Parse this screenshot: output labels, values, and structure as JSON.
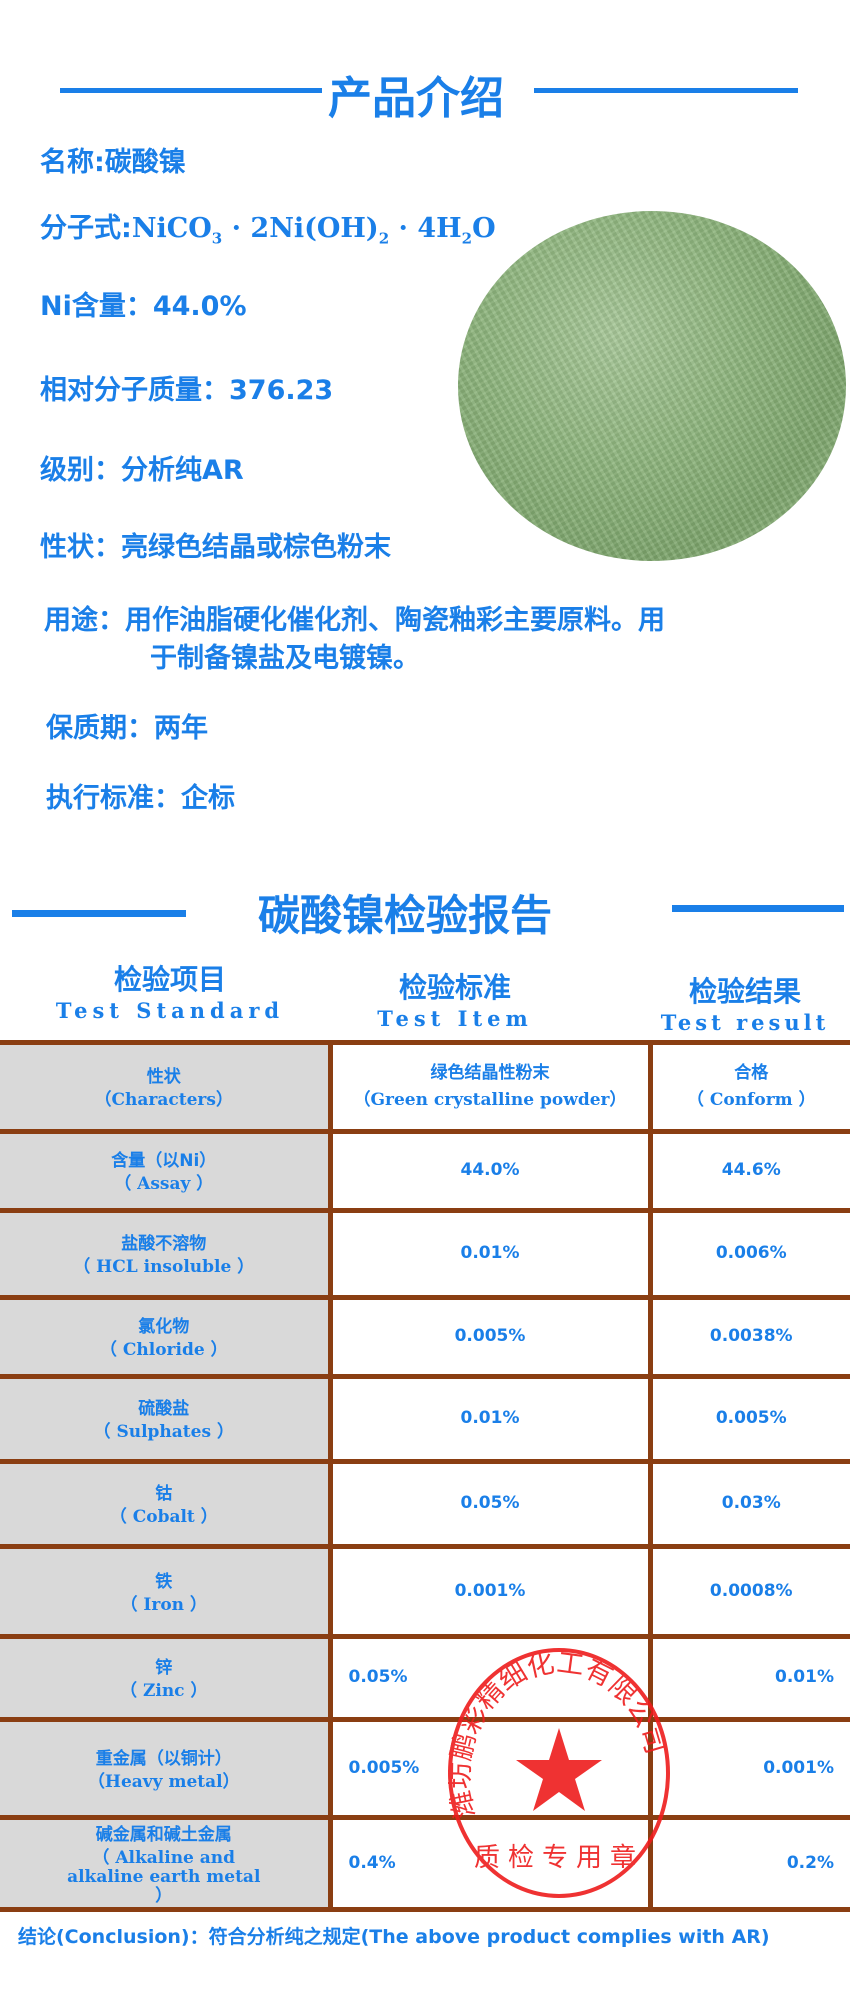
{
  "intro": {
    "title": "产品介绍",
    "name": "名称:碳酸镍",
    "formula_label": "分子式:",
    "formula": {
      "a": "NiCO",
      "s1": "3",
      "b": " · 2Ni(OH)",
      "s2": "2",
      "c": " · 4H",
      "s3": "2",
      "d": "O"
    },
    "ni_content": "Ni含量：44.0%",
    "molecular_weight": "相对分子质量：376.23",
    "grade": "级别：分析纯AR",
    "appearance": "性状：亮绿色结晶或棕色粉末",
    "usage_line1": "用途：用作油脂硬化催化剂、陶瓷釉彩主要原料。用",
    "usage_line2": "于制备镍盐及电镀镍。",
    "shelf_life": "保质期：两年",
    "standard": "执行标准：企标"
  },
  "report": {
    "title": "碳酸镍检验报告",
    "headers": [
      {
        "cn": "检验项目",
        "en": "Test Standard"
      },
      {
        "cn": "检验标准",
        "en": "Test Item"
      },
      {
        "cn": "检验结果",
        "en": "Test result"
      }
    ],
    "rows": [
      {
        "item_cn": "性状",
        "item_en": "（Characters）",
        "standard": "绿色结晶性粉末",
        "standard_en": "（Green crystalline powder）",
        "result": "合格",
        "result_en": "（ Conform ）"
      },
      {
        "item_cn": "含量（以Ni）",
        "item_en": "（ Assay ）",
        "standard": "44.0%",
        "result": "44.6%"
      },
      {
        "item_cn": "盐酸不溶物",
        "item_en": "（ HCL insoluble ）",
        "standard": "0.01%",
        "result": "0.006%"
      },
      {
        "item_cn": "氯化物",
        "item_en": "（ Chloride ）",
        "standard": "0.005%",
        "result": "0.0038%"
      },
      {
        "item_cn": "硫酸盐",
        "item_en": "（ Sulphates ）",
        "standard": "0.01%",
        "result": "0.005%"
      },
      {
        "item_cn": "钴",
        "item_en": "（      Cobalt ）",
        "standard": "0.05%",
        "result": "0.03%"
      },
      {
        "item_cn": "铁",
        "item_en": "（ Iron ）",
        "standard": "0.001%",
        "result": "0.0008%"
      },
      {
        "item_cn": "锌",
        "item_en": "（ Zinc ）",
        "standard": "0.05%",
        "result": "0.01%"
      },
      {
        "item_cn": "重金属（以铜计）",
        "item_en": "（Heavy metal）",
        "standard": "0.005%",
        "result": "0.001%"
      },
      {
        "item_cn": "碱金属和碱土金属",
        "item_en": "（ Alkaline and alkaline earth metal ）",
        "standard": "0.4%",
        "result": "0.2%"
      }
    ],
    "conclusion": "结论(Conclusion)：符合分析纯之规定(The above product complies with AR)",
    "stamp": {
      "company": "潍坊鹏彩精细化工有限公司",
      "label": "质检专用章",
      "color": "#ee1c1c"
    }
  },
  "colors": {
    "text": "#1a7fe8",
    "table_border": "#8a3e12",
    "item_cell_bg": "#d9d9d9"
  }
}
